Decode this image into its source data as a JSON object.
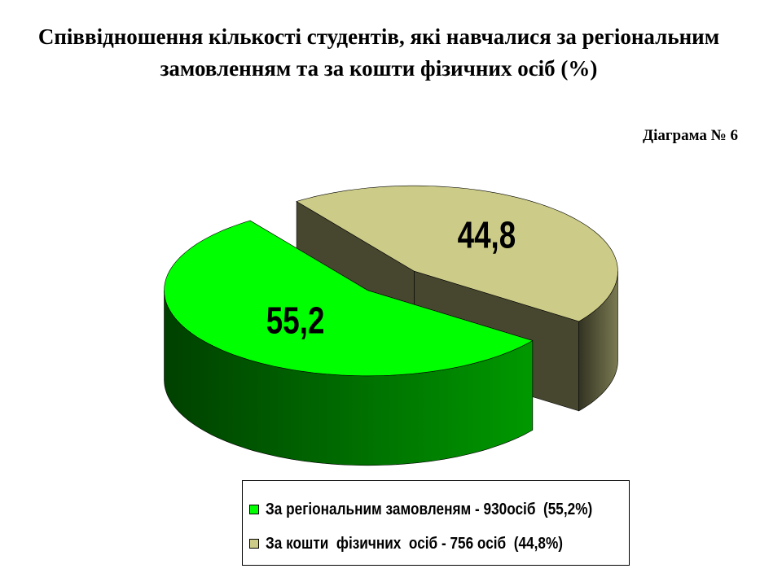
{
  "chart_data": {
    "type": "pie",
    "title": "Співвідношення кількості студентів, які навчалися за регіональним замовленням та за кошти фізичних осіб (%)",
    "subtitle": "Діаграма № 6",
    "categories": [
      "За регіональним замовленям - 930осіб  (55,2%)",
      "За кошти  фізичних  осіб - 756 осіб  (44,8%)"
    ],
    "values": [
      55.2,
      44.8
    ],
    "value_labels": [
      "55,2",
      "44,8"
    ],
    "colors": [
      "#00ff00",
      "#cccc88"
    ]
  }
}
